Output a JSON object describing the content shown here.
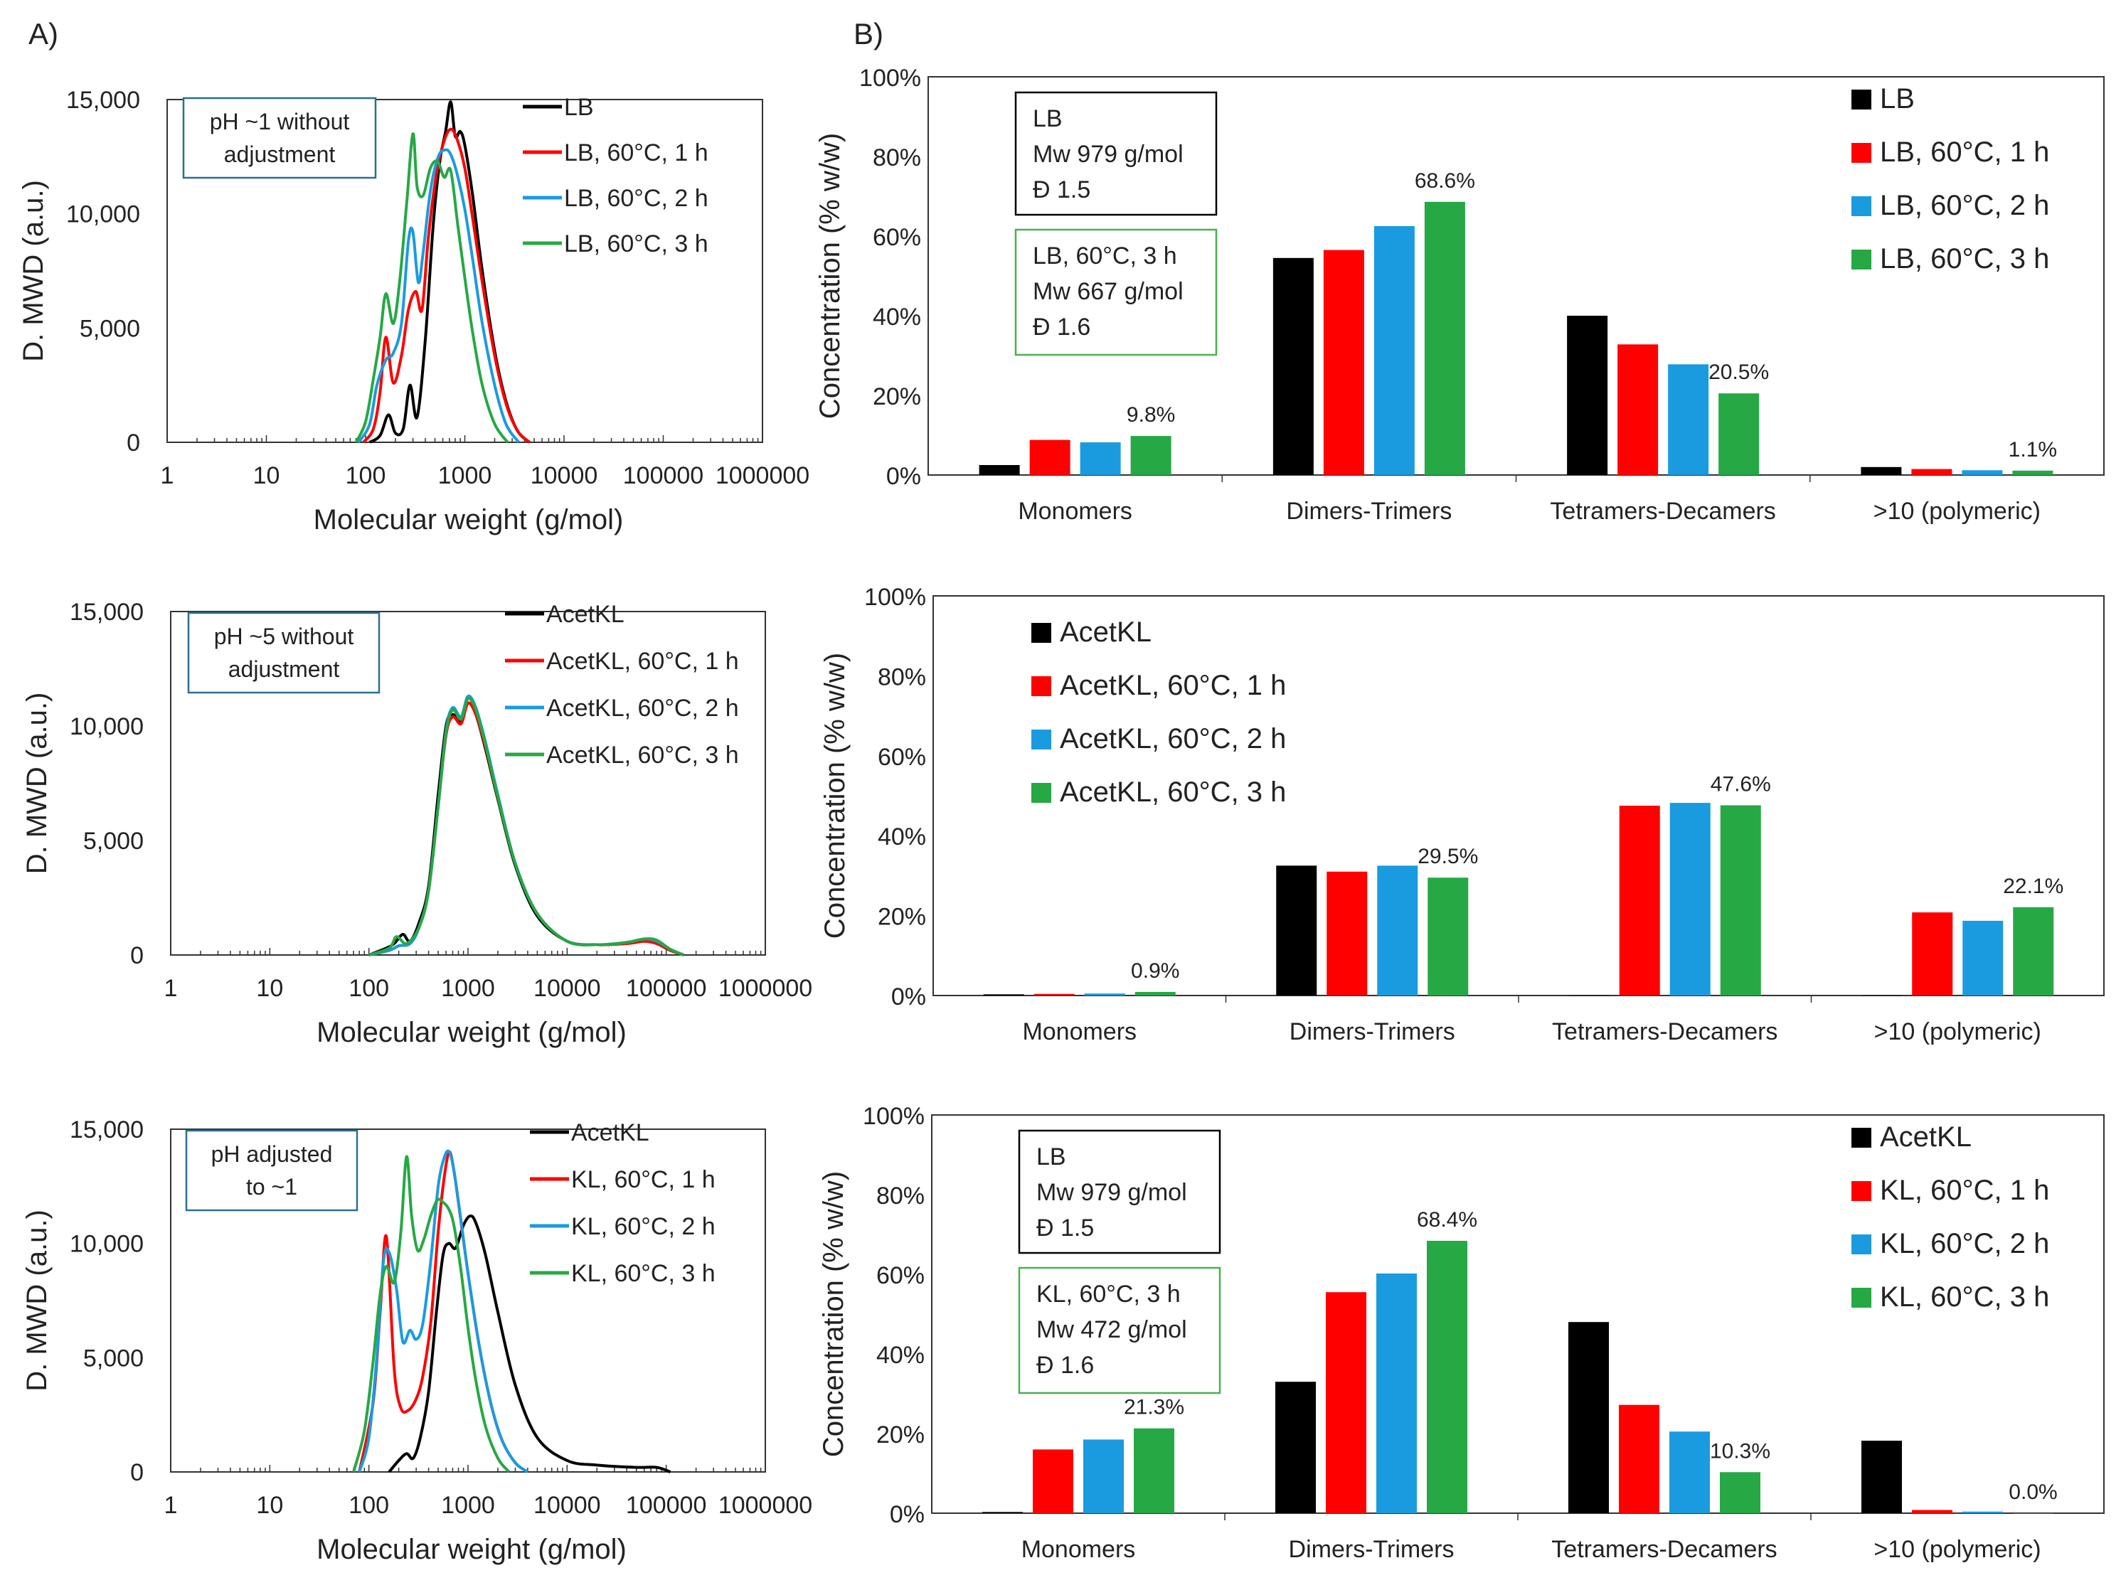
{
  "figure": {
    "panel_a_label": "A)",
    "panel_b_label": "B)"
  },
  "colors": {
    "black": "#000000",
    "red": "#ff0000",
    "blue": "#1a9be0",
    "green": "#26a845",
    "annotation_border": "#2a6f8f",
    "box_green": "#4caf50"
  },
  "chart_data": [
    {
      "id": "A1",
      "type": "line",
      "xscale": "log",
      "xlim": [
        1,
        1000000
      ],
      "ylim": [
        0,
        15000
      ],
      "xticks": [
        "1",
        "10",
        "100",
        "1000",
        "10000",
        "100000",
        "1000000"
      ],
      "yticks": [
        "0",
        "5,000",
        "10,000",
        "15,000"
      ],
      "xlabel": "Molecular weight (g/mol)",
      "ylabel": "D. MWD (a.u.)",
      "annotation": [
        "pH ~1 without",
        "adjustment"
      ],
      "legend": [
        "LB",
        "LB, 60°C, 1 h",
        "LB, 60°C, 2 h",
        "LB, 60°C, 3 h"
      ],
      "series": [
        {
          "name": "LB",
          "color": "#000000",
          "x": [
            110,
            140,
            170,
            200,
            240,
            280,
            330,
            400,
            480,
            560,
            640,
            720,
            800,
            900,
            1000,
            1200,
            1500,
            2000,
            2600,
            3400,
            4500
          ],
          "y": [
            0,
            300,
            1200,
            400,
            600,
            2500,
            1100,
            4500,
            9500,
            12300,
            13600,
            14900,
            13400,
            13600,
            13000,
            10800,
            7500,
            4000,
            1800,
            500,
            0
          ]
        },
        {
          "name": "LB, 60°C, 1 h",
          "color": "#ff0000",
          "x": [
            95,
            120,
            140,
            160,
            190,
            230,
            270,
            320,
            370,
            430,
            520,
            620,
            720,
            830,
            1000,
            1200,
            1500,
            2000,
            2600,
            3400,
            4500
          ],
          "y": [
            0,
            600,
            2200,
            4600,
            2600,
            3800,
            5800,
            6600,
            5800,
            9000,
            11800,
            13200,
            13700,
            13300,
            12000,
            9800,
            7000,
            3800,
            1700,
            500,
            0
          ]
        },
        {
          "name": "LB, 60°C, 2 h",
          "color": "#1a9be0",
          "x": [
            85,
            110,
            130,
            160,
            190,
            230,
            270,
            300,
            340,
            380,
            450,
            540,
            640,
            720,
            830,
            1000,
            1200,
            1500,
            2000,
            2600,
            3500
          ],
          "y": [
            0,
            800,
            2500,
            3600,
            3900,
            5200,
            8800,
            9200,
            7000,
            8300,
            11000,
            12500,
            12800,
            12600,
            11800,
            10200,
            8000,
            5200,
            2500,
            800,
            0
          ]
        },
        {
          "name": "LB, 60°C, 3 h",
          "color": "#26a845",
          "x": [
            80,
            100,
            120,
            140,
            160,
            190,
            220,
            260,
            300,
            330,
            380,
            450,
            530,
            620,
            720,
            850,
            1000,
            1200,
            1500,
            2000,
            2700
          ],
          "y": [
            0,
            900,
            2800,
            4600,
            6500,
            5200,
            7000,
            10500,
            13500,
            11200,
            10800,
            12000,
            12300,
            11600,
            11900,
            9500,
            7200,
            4800,
            2500,
            800,
            0
          ]
        }
      ]
    },
    {
      "id": "A2",
      "type": "line",
      "xscale": "log",
      "xlim": [
        1,
        1000000
      ],
      "ylim": [
        0,
        15000
      ],
      "xticks": [
        "1",
        "10",
        "100",
        "1000",
        "10000",
        "100000",
        "1000000"
      ],
      "yticks": [
        "0",
        "5,000",
        "10,000",
        "15,000"
      ],
      "xlabel": "Molecular weight (g/mol)",
      "ylabel": "D. MWD (a.u.)",
      "annotation": [
        "pH ~5 without",
        "adjustment"
      ],
      "legend": [
        "AcetKL",
        "AcetKL, 60°C, 1 h",
        "AcetKL, 60°C, 2 h",
        "AcetKL, 60°C, 3 h"
      ],
      "series": [
        {
          "name": "AcetKL",
          "color": "#000000",
          "x": [
            100,
            150,
            180,
            220,
            260,
            320,
            400,
            500,
            600,
            700,
            850,
            1000,
            1200,
            1500,
            2000,
            3000,
            5000,
            10000,
            20000,
            40000,
            60000,
            80000,
            110000,
            150000
          ],
          "y": [
            0,
            300,
            500,
            900,
            600,
            1400,
            3000,
            7000,
            10000,
            10500,
            10200,
            11000,
            10500,
            9000,
            6800,
            3900,
            1700,
            600,
            450,
            500,
            600,
            500,
            200,
            0
          ]
        },
        {
          "name": "AcetKL, 60°C, 1 h",
          "color": "#ff0000",
          "x": [
            100,
            160,
            200,
            260,
            320,
            400,
            500,
            600,
            700,
            850,
            1000,
            1200,
            1500,
            2000,
            3000,
            5000,
            10000,
            20000,
            40000,
            60000,
            80000,
            110000,
            150000
          ],
          "y": [
            0,
            200,
            400,
            500,
            1200,
            2800,
            6500,
            9600,
            10400,
            10100,
            11000,
            10500,
            9100,
            6900,
            4000,
            1800,
            600,
            450,
            500,
            600,
            500,
            200,
            0
          ]
        },
        {
          "name": "AcetKL, 60°C, 2 h",
          "color": "#1a9be0",
          "x": [
            100,
            160,
            200,
            260,
            320,
            400,
            500,
            600,
            700,
            850,
            1000,
            1200,
            1500,
            2000,
            3000,
            5000,
            10000,
            20000,
            40000,
            60000,
            80000,
            110000,
            150000
          ],
          "y": [
            0,
            200,
            400,
            500,
            1200,
            2800,
            6500,
            9800,
            10800,
            10400,
            11300,
            10800,
            9300,
            7000,
            4000,
            1800,
            600,
            450,
            550,
            700,
            600,
            250,
            0
          ]
        },
        {
          "name": "AcetKL, 60°C, 3 h",
          "color": "#26a845",
          "x": [
            100,
            160,
            190,
            240,
            320,
            400,
            500,
            600,
            700,
            850,
            1000,
            1200,
            1500,
            2000,
            3000,
            5000,
            10000,
            20000,
            40000,
            60000,
            80000,
            110000,
            150000
          ],
          "y": [
            0,
            300,
            800,
            500,
            1200,
            2800,
            6500,
            9700,
            10700,
            10300,
            11200,
            10700,
            9200,
            6900,
            4000,
            1800,
            600,
            450,
            550,
            700,
            650,
            250,
            0
          ]
        }
      ]
    },
    {
      "id": "A3",
      "type": "line",
      "xscale": "log",
      "xlim": [
        1,
        1000000
      ],
      "ylim": [
        0,
        15000
      ],
      "xticks": [
        "1",
        "10",
        "100",
        "1000",
        "10000",
        "100000",
        "1000000"
      ],
      "yticks": [
        "0",
        "5,000",
        "10,000",
        "15,000"
      ],
      "xlabel": "Molecular weight (g/mol)",
      "ylabel": "D. MWD (a.u.)",
      "annotation": [
        "pH adjusted",
        "to ~1"
      ],
      "legend": [
        "AcetKL",
        "KL, 60°C, 1 h",
        "KL, 60°C, 2 h",
        "KL, 60°C, 3 h"
      ],
      "series": [
        {
          "name": "AcetKL",
          "color": "#000000",
          "x": [
            160,
            200,
            240,
            280,
            330,
            400,
            480,
            560,
            640,
            750,
            900,
            1050,
            1200,
            1500,
            2000,
            3000,
            5000,
            10000,
            20000,
            50000,
            80000,
            110000
          ],
          "y": [
            0,
            500,
            800,
            600,
            1500,
            3500,
            7000,
            9500,
            10000,
            9800,
            10800,
            11200,
            10900,
            9500,
            7000,
            3800,
            1500,
            500,
            300,
            200,
            200,
            0
          ]
        },
        {
          "name": "KL, 60°C, 1 h",
          "color": "#ff0000",
          "x": [
            80,
            110,
            130,
            150,
            180,
            210,
            250,
            300,
            350,
            420,
            500,
            580,
            650,
            720,
            800,
            1000,
            1300,
            1700,
            2200,
            3000,
            4000
          ],
          "y": [
            0,
            3000,
            7000,
            10300,
            4500,
            2800,
            2700,
            3200,
            4200,
            6500,
            10500,
            13000,
            14000,
            13200,
            11800,
            8700,
            5500,
            3000,
            1400,
            400,
            0
          ]
        },
        {
          "name": "KL, 60°C, 2 h",
          "color": "#1a9be0",
          "x": [
            80,
            100,
            120,
            140,
            160,
            190,
            220,
            260,
            300,
            350,
            420,
            500,
            580,
            650,
            720,
            820,
            1000,
            1300,
            1700,
            2200,
            3000,
            4000
          ],
          "y": [
            0,
            1500,
            5000,
            9200,
            9600,
            8000,
            5700,
            6200,
            5800,
            6500,
            9200,
            12500,
            13800,
            14000,
            13200,
            11500,
            8700,
            5500,
            3000,
            1400,
            400,
            0
          ]
        },
        {
          "name": "KL, 60°C, 3 h",
          "color": "#26a845",
          "x": [
            70,
            90,
            110,
            130,
            150,
            180,
            210,
            240,
            270,
            310,
            360,
            420,
            490,
            560,
            640,
            720,
            850,
            1000,
            1200,
            1500,
            2000,
            2600
          ],
          "y": [
            0,
            1800,
            4800,
            7800,
            9000,
            8300,
            10500,
            13800,
            11200,
            9700,
            10200,
            11200,
            11900,
            11800,
            11500,
            10800,
            8800,
            6300,
            4000,
            2000,
            600,
            0
          ]
        }
      ]
    },
    {
      "id": "B1",
      "type": "bar",
      "categories": [
        "Monomers",
        "Dimers-Trimers",
        "Tetramers-Decamers",
        ">10 (polymeric)"
      ],
      "ylabel": "Concentration (% w/w)",
      "ylim": [
        0,
        100
      ],
      "yticks": [
        "0%",
        "20%",
        "40%",
        "60%",
        "80%",
        "100%"
      ],
      "series": [
        {
          "name": "LB",
          "color": "#000000",
          "values": [
            2.5,
            54.5,
            40.0,
            2.0
          ]
        },
        {
          "name": "LB, 60°C, 1 h",
          "color": "#ff0000",
          "values": [
            8.8,
            56.5,
            32.8,
            1.5
          ]
        },
        {
          "name": "LB, 60°C, 2 h",
          "color": "#1a9be0",
          "values": [
            8.2,
            62.5,
            27.8,
            1.2
          ]
        },
        {
          "name": "LB, 60°C, 3 h",
          "color": "#26a845",
          "values": [
            9.8,
            68.6,
            20.5,
            1.1
          ]
        }
      ],
      "data_labels": [
        "9.8%",
        "68.6%",
        "20.5%",
        "1.1%"
      ],
      "legend_position": "top-right",
      "box_black": [
        "LB",
        "Mw 979 g/mol",
        "Đ 1.5"
      ],
      "box_green": [
        "LB, 60°C, 3 h",
        "Mw 667 g/mol",
        "Đ 1.6"
      ]
    },
    {
      "id": "B2",
      "type": "bar",
      "categories": [
        "Monomers",
        "Dimers-Trimers",
        "Tetramers-Decamers",
        ">10 (polymeric)"
      ],
      "ylabel": "Concentration (% w/w)",
      "ylim": [
        0,
        100
      ],
      "yticks": [
        "0%",
        "20%",
        "40%",
        "60%",
        "80%",
        "100%"
      ],
      "series": [
        {
          "name": "AcetKL",
          "color": "#000000",
          "values": [
            0.3,
            32.5,
            0,
            0
          ]
        },
        {
          "name": "AcetKL, 60°C, 1 h",
          "color": "#ff0000",
          "values": [
            0.4,
            31.0,
            47.5,
            20.8
          ]
        },
        {
          "name": "AcetKL, 60°C, 2 h",
          "color": "#1a9be0",
          "values": [
            0.5,
            32.5,
            48.2,
            18.7
          ]
        },
        {
          "name": "AcetKL, 60°C, 3 h",
          "color": "#26a845",
          "values": [
            0.9,
            29.5,
            47.6,
            22.1
          ]
        }
      ],
      "data_labels": [
        "0.9%",
        "29.5%",
        "47.6%",
        "22.1%"
      ],
      "legend_position": "top-left"
    },
    {
      "id": "B3",
      "type": "bar",
      "categories": [
        "Monomers",
        "Dimers-Trimers",
        "Tetramers-Decamers",
        ">10 (polymeric)"
      ],
      "ylabel": "Concentration (% w/w)",
      "ylim": [
        0,
        100
      ],
      "yticks": [
        "0%",
        "20%",
        "40%",
        "60%",
        "80%",
        "100%"
      ],
      "series": [
        {
          "name": "AcetKL",
          "color": "#000000",
          "values": [
            0.3,
            33.0,
            48.0,
            18.2
          ]
        },
        {
          "name": "KL, 60°C, 1 h",
          "color": "#ff0000",
          "values": [
            16.0,
            55.5,
            27.2,
            0.8
          ]
        },
        {
          "name": "KL, 60°C, 2 h",
          "color": "#1a9be0",
          "values": [
            18.5,
            60.2,
            20.5,
            0.4
          ]
        },
        {
          "name": "KL, 60°C, 3 h",
          "color": "#26a845",
          "values": [
            21.3,
            68.4,
            10.3,
            0.0
          ]
        }
      ],
      "data_labels": [
        "21.3%",
        "68.4%",
        "10.3%",
        "0.0%"
      ],
      "legend_position": "top-right",
      "box_black": [
        "LB",
        "Mw 979 g/mol",
        "Đ 1.5"
      ],
      "box_green": [
        "KL, 60°C, 3 h",
        "Mw 472 g/mol",
        "Đ 1.6"
      ]
    }
  ]
}
